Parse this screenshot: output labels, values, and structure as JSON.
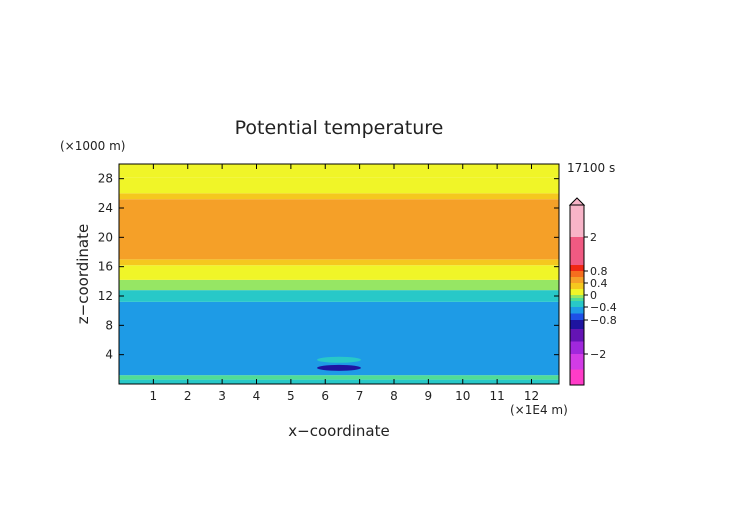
{
  "chart_data": {
    "type": "heatmap",
    "title": "Potential temperature",
    "xlabel": "x−coordinate",
    "ylabel": "z−coordinate",
    "x_unit": "(×1E4 m)",
    "y_unit": "(×1000 m)",
    "time_label": "17100 s",
    "xlim": [
      0,
      12.8
    ],
    "ylim": [
      0,
      30
    ],
    "x_ticks": [
      1,
      2,
      3,
      4,
      5,
      6,
      7,
      8,
      9,
      10,
      11,
      12
    ],
    "y_ticks": [
      4,
      8,
      12,
      16,
      20,
      24,
      28
    ],
    "grid": false,
    "bands": [
      {
        "z0": 0.0,
        "z1": 0.6,
        "level": "-0.3"
      },
      {
        "z0": 0.6,
        "z1": 1.2,
        "level": "-0.2"
      },
      {
        "z0": 1.2,
        "z1": 11.2,
        "level": "-0.5"
      },
      {
        "z0": 11.2,
        "z1": 12.8,
        "level": "-0.3"
      },
      {
        "z0": 12.8,
        "z1": 14.2,
        "level": "-0.1"
      },
      {
        "z0": 14.2,
        "z1": 16.2,
        "level": "0.1"
      },
      {
        "z0": 16.2,
        "z1": 17.0,
        "level": "0.3"
      },
      {
        "z0": 17.0,
        "z1": 25.2,
        "level": "0.5"
      },
      {
        "z0": 25.2,
        "z1": 26.0,
        "level": "0.3"
      },
      {
        "z0": 26.0,
        "z1": 28.2,
        "level": "0.1"
      },
      {
        "z0": 28.2,
        "z1": 30.0,
        "level": "0.1"
      }
    ],
    "features": [
      {
        "x": 6.4,
        "z": 2.2,
        "level": "-0.9"
      },
      {
        "x": 6.4,
        "z": 3.3,
        "level": "-0.3"
      }
    ],
    "colorbar": {
      "tick_labels": [
        "2",
        "0.8",
        "0.4",
        "0",
        "−0.4",
        "−0.8",
        "−2"
      ],
      "tick_values": [
        2,
        0.8,
        0.4,
        0,
        -0.4,
        -0.8,
        -2
      ],
      "colors": [
        {
          "level": "-2.5",
          "color": "#ff3cc8"
        },
        {
          "level": "-2",
          "color": "#d23ce6"
        },
        {
          "level": "-1.5",
          "color": "#a028dc"
        },
        {
          "level": "-1",
          "color": "#6414b4"
        },
        {
          "level": "-0.9",
          "color": "#1e14a0"
        },
        {
          "level": "-0.7",
          "color": "#1e50e6"
        },
        {
          "level": "-0.5",
          "color": "#1e9be6"
        },
        {
          "level": "-0.3",
          "color": "#28c8c8"
        },
        {
          "level": "-0.2",
          "color": "#50dc96"
        },
        {
          "level": "-0.1",
          "color": "#96e664"
        },
        {
          "level": "0.1",
          "color": "#f0f528"
        },
        {
          "level": "0.3",
          "color": "#f5c81e"
        },
        {
          "level": "0.5",
          "color": "#f5a028"
        },
        {
          "level": "0.7",
          "color": "#f56e1e"
        },
        {
          "level": "0.9",
          "color": "#f02814"
        },
        {
          "level": "1.5",
          "color": "#f05a82"
        },
        {
          "level": "2.5",
          "color": "#f8b4c8"
        }
      ]
    }
  }
}
